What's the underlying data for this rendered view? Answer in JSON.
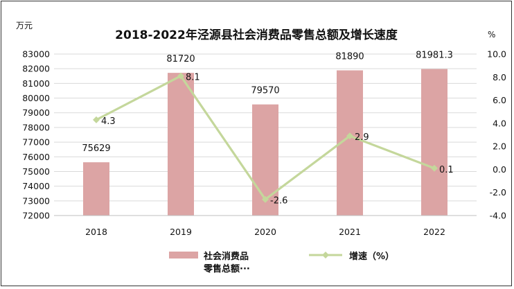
{
  "chart_data": {
    "type": "bar",
    "title": "2018-2022年泾源县社会消费品零售总额及增长速度",
    "left_unit": "万元",
    "right_unit": "%",
    "categories": [
      "2018",
      "2019",
      "2020",
      "2021",
      "2022"
    ],
    "series": [
      {
        "name": "社会消费品零售总额",
        "legend_label_lines": [
          "社会消费品",
          "零售总额···"
        ],
        "type": "bar",
        "axis": "left",
        "values": [
          75629,
          81720,
          79570,
          81890,
          81981.3
        ],
        "labels": [
          "75629",
          "81720",
          "79570",
          "81890",
          "81981.3"
        ],
        "color": "#dca4a4"
      },
      {
        "name": "增速（%）",
        "type": "line",
        "axis": "right",
        "values": [
          4.3,
          8.1,
          -2.6,
          2.9,
          0.1
        ],
        "labels": [
          "4.3",
          "8.1",
          "-2.6",
          "2.9",
          "0.1"
        ],
        "color": "#c4d79b"
      }
    ],
    "y_left": {
      "lim": [
        72000,
        83000
      ],
      "ticks": [
        "72000",
        "73000",
        "74000",
        "75000",
        "76000",
        "77000",
        "78000",
        "79000",
        "80000",
        "81000",
        "82000",
        "83000"
      ]
    },
    "y_right": {
      "lim": [
        -4,
        10
      ],
      "ticks": [
        "-4.0",
        "-2.0",
        "0.0",
        "2.0",
        "4.0",
        "6.0",
        "8.0",
        "10.0"
      ]
    },
    "grid": true,
    "legend_position": "bottom"
  }
}
